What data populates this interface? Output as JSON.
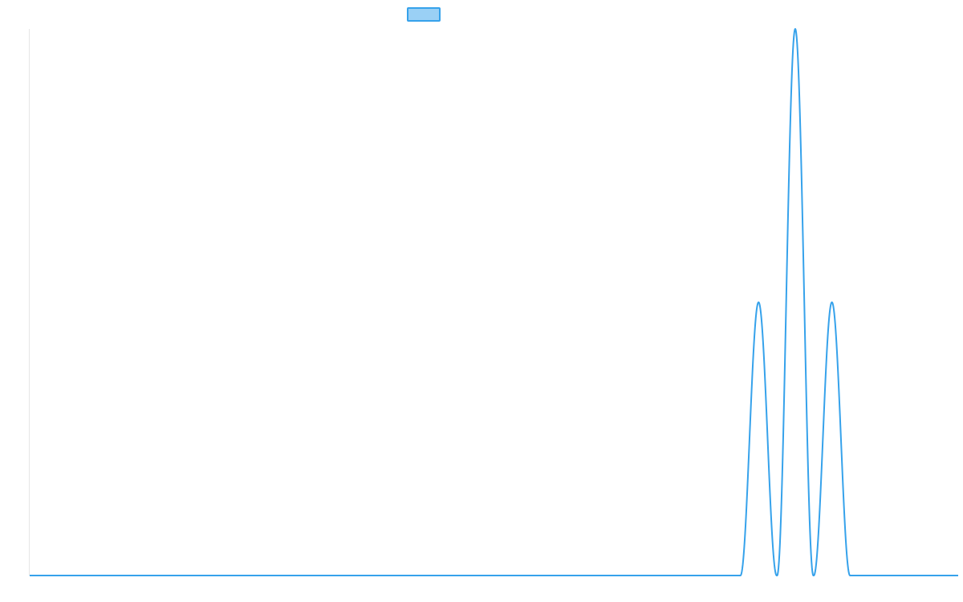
{
  "chart_data": {
    "type": "line",
    "title": "",
    "xlabel": "",
    "ylabel": "",
    "grid": false,
    "legend_position": "top-center",
    "x_range": [
      0,
      1000
    ],
    "ylim": [
      0,
      1
    ],
    "series": [
      {
        "label": "",
        "color": "#36a2eb",
        "fill_color": "#9ad0f5",
        "peaks": [
          {
            "center": 785,
            "half_width": 19.5,
            "height": 0.5
          },
          {
            "center": 824.5,
            "half_width": 19.5,
            "height": 1.0
          },
          {
            "center": 864,
            "half_width": 19.5,
            "height": 0.5
          }
        ]
      }
    ]
  }
}
